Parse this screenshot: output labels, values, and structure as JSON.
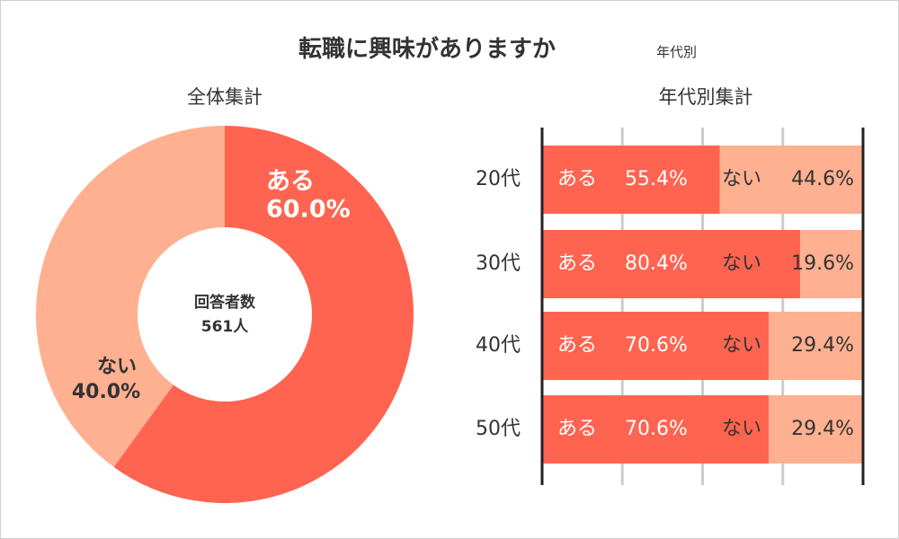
{
  "colors": {
    "aru": "#ff6450",
    "nai": "#ffb090",
    "text_dark": "#333333",
    "text_light": "#ffffff",
    "grid": "#cccccc",
    "axis": "#222222"
  },
  "header": {
    "title": "転職に興味がありますか",
    "subtitle": "年代別"
  },
  "chart_data": [
    {
      "type": "pie",
      "title": "全体集計",
      "center_label": "回答者数",
      "center_value": "561人",
      "slices": [
        {
          "label": "ある",
          "value": 60.0,
          "value_label": "60.0%"
        },
        {
          "label": "ない",
          "value": 40.0,
          "value_label": "40.0%"
        }
      ]
    },
    {
      "type": "bar",
      "orientation": "horizontal",
      "stacked": true,
      "title": "年代別集計",
      "categories": [
        "20代",
        "30代",
        "40代",
        "50代"
      ],
      "xlim": [
        0,
        100
      ],
      "series": [
        {
          "name": "ある",
          "values": [
            55.4,
            80.4,
            70.6,
            70.6
          ],
          "value_labels": [
            "55.4%",
            "80.4%",
            "70.6%",
            "70.6%"
          ]
        },
        {
          "name": "ない",
          "values": [
            44.6,
            19.6,
            29.4,
            29.4
          ],
          "value_labels": [
            "44.6%",
            "19.6%",
            "29.4%",
            "29.4%"
          ]
        }
      ]
    }
  ]
}
